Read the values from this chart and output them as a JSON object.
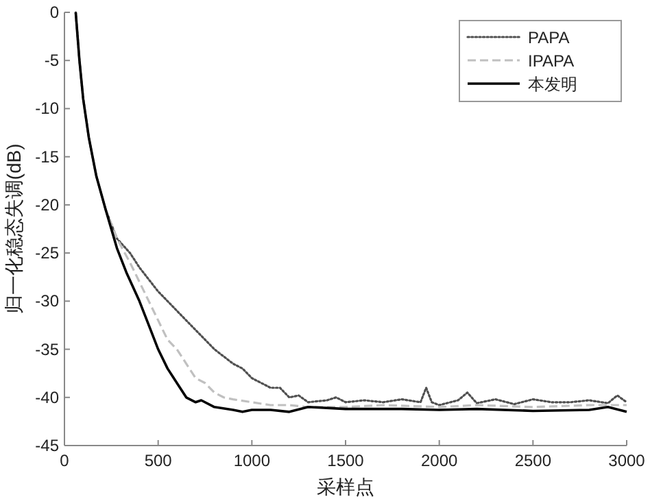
{
  "chart_data": {
    "type": "line",
    "xlabel": "采样点",
    "ylabel": "归一化稳态失调(dB)",
    "xlim": [
      0,
      3000
    ],
    "ylim": [
      -45,
      0
    ],
    "xticks": [
      0,
      500,
      1000,
      1500,
      2000,
      2500,
      3000
    ],
    "yticks": [
      -45,
      -40,
      -35,
      -30,
      -25,
      -20,
      -15,
      -10,
      -5,
      0
    ],
    "legend": "top right",
    "series": [
      {
        "name": "PAPA",
        "color": "#505050",
        "line_style": "dotted",
        "x": [
          60,
          80,
          100,
          130,
          170,
          220,
          280,
          350,
          400,
          500,
          600,
          700,
          800,
          900,
          950,
          1000,
          1050,
          1100,
          1150,
          1200,
          1250,
          1300,
          1400,
          1450,
          1500,
          1600,
          1700,
          1800,
          1900,
          1930,
          1960,
          2000,
          2100,
          2150,
          2200,
          2300,
          2400,
          2500,
          2600,
          2700,
          2800,
          2900,
          2950,
          3000
        ],
        "values": [
          0,
          -5,
          -9,
          -13,
          -17,
          -20.5,
          -23.5,
          -25,
          -26.5,
          -29,
          -31,
          -33,
          -35,
          -36.5,
          -37,
          -38,
          -38.5,
          -39,
          -39,
          -40,
          -39.8,
          -40.5,
          -40.3,
          -40,
          -40.5,
          -40.3,
          -40.5,
          -40.2,
          -40.5,
          -39,
          -40.5,
          -40.8,
          -40.3,
          -39.5,
          -40.6,
          -40.2,
          -40.7,
          -40.2,
          -40.5,
          -40.5,
          -40.3,
          -40.6,
          -39.8,
          -40.5
        ]
      },
      {
        "name": "IPAPA",
        "color": "#c0c0c0",
        "line_style": "dashed",
        "x": [
          60,
          80,
          100,
          130,
          170,
          220,
          280,
          350,
          400,
          450,
          500,
          550,
          600,
          650,
          700,
          750,
          800,
          850,
          900,
          1000,
          1100,
          1200,
          1300,
          1500,
          1700,
          2000,
          2200,
          2500,
          2800,
          3000
        ],
        "values": [
          0,
          -5,
          -9,
          -13,
          -17,
          -20.5,
          -23.5,
          -26,
          -28,
          -30,
          -32,
          -34,
          -35,
          -36.5,
          -38,
          -38.5,
          -39.5,
          -40,
          -40.2,
          -40.5,
          -40.8,
          -40.8,
          -41,
          -41,
          -40.8,
          -41,
          -40.8,
          -41,
          -40.8,
          -40.8
        ]
      },
      {
        "name": "本发明",
        "color": "#000000",
        "line_style": "solid",
        "x": [
          60,
          80,
          100,
          130,
          170,
          220,
          280,
          330,
          400,
          450,
          500,
          550,
          600,
          650,
          700,
          730,
          800,
          900,
          950,
          1000,
          1100,
          1200,
          1300,
          1500,
          1800,
          2000,
          2200,
          2500,
          2800,
          2900,
          3000
        ],
        "values": [
          0,
          -5,
          -9,
          -13,
          -17,
          -20.5,
          -24.5,
          -27,
          -30,
          -32.5,
          -35,
          -37,
          -38.5,
          -40,
          -40.5,
          -40.3,
          -41,
          -41.3,
          -41.5,
          -41.3,
          -41.3,
          -41.5,
          -41,
          -41.2,
          -41.2,
          -41.3,
          -41.2,
          -41.4,
          -41.3,
          -41,
          -41.5
        ]
      }
    ]
  }
}
